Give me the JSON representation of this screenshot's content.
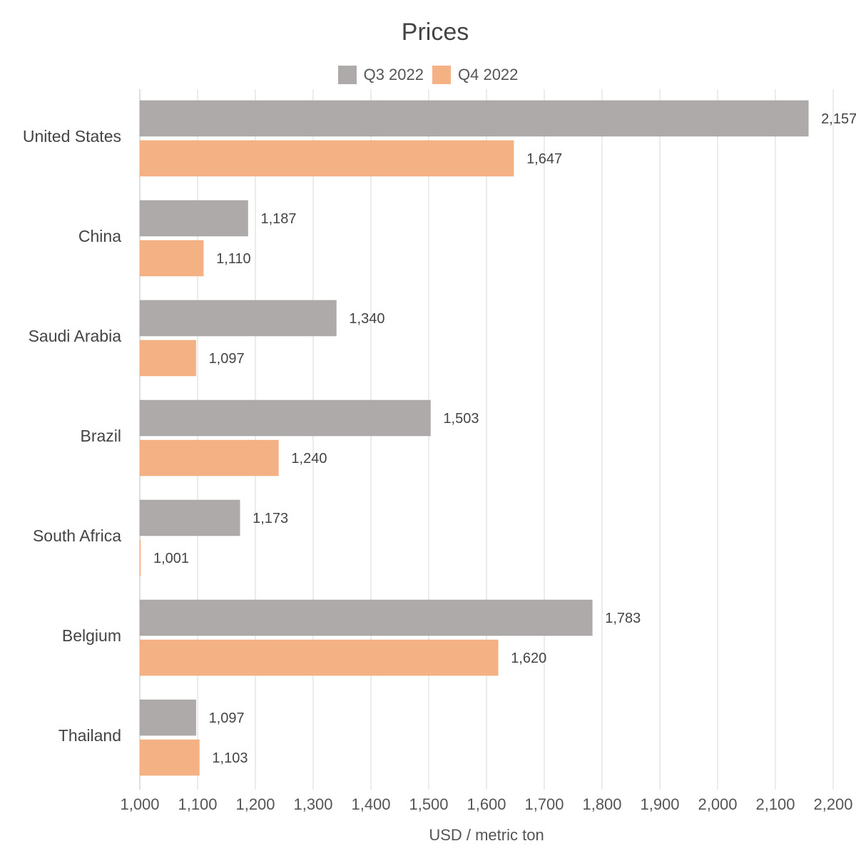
{
  "chart_data": {
    "type": "bar",
    "orientation": "horizontal",
    "title": "Prices",
    "xlabel": "USD / metric ton",
    "ylabel": "",
    "xlim": [
      1000,
      2200
    ],
    "xticks": [
      1000,
      1100,
      1200,
      1300,
      1400,
      1500,
      1600,
      1700,
      1800,
      1900,
      2000,
      2100,
      2200
    ],
    "xtick_labels": [
      "1,000",
      "1,100",
      "1,200",
      "1,300",
      "1,400",
      "1,500",
      "1,600",
      "1,700",
      "1,800",
      "1,900",
      "2,000",
      "2,100",
      "2,200"
    ],
    "categories": [
      "United States",
      "China",
      "Saudi Arabia",
      "Brazil",
      "South Africa",
      "Belgium",
      "Thailand"
    ],
    "series": [
      {
        "name": "Q3 2022",
        "color": "#aeaaaa",
        "values": [
          2157,
          1187,
          1340,
          1503,
          1173,
          1783,
          1097
        ],
        "labels": [
          "2,157",
          "1,187",
          "1,340",
          "1,503",
          "1,173",
          "1,783",
          "1,097"
        ]
      },
      {
        "name": "Q4 2022",
        "color": "#f4b183",
        "values": [
          1647,
          1110,
          1097,
          1240,
          1001,
          1620,
          1103
        ],
        "labels": [
          "1,647",
          "1,110",
          "1,097",
          "1,240",
          "1,001",
          "1,620",
          "1,103"
        ]
      }
    ],
    "legend_position": "top",
    "grid": {
      "vertical": true,
      "horizontal": false
    }
  }
}
